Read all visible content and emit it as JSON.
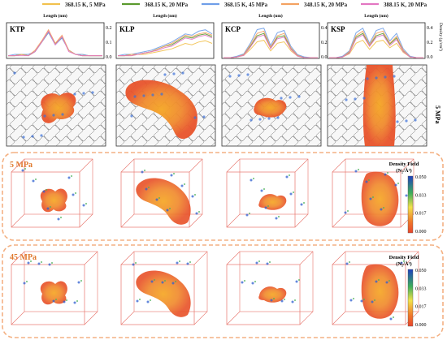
{
  "legend": [
    {
      "label": "368.15 K, 5 MPa",
      "color": "#f2c14e"
    },
    {
      "label": "368.15 K, 20 MPa",
      "color": "#5a9a2e"
    },
    {
      "label": "368.15 K, 45 MPa",
      "color": "#6f9ee8"
    },
    {
      "label": "348.15 K, 20 MPa",
      "color": "#f4a261"
    },
    {
      "label": "388.15 K, 20 MPa",
      "color": "#e377c2"
    }
  ],
  "panels": [
    "KTP",
    "KLP",
    "KCP",
    "KSP"
  ],
  "xlabel": "Length (nm)",
  "ylabel": "Density (g/cm³)",
  "yticks_a": [
    "0.2",
    "0.1",
    "0.0"
  ],
  "yticks_b": [
    "0.4",
    "0.2",
    "0.0"
  ],
  "row_label_2d": "5 MPa",
  "row_label_3d_a": "5 MPa",
  "row_label_3d_b": "45 MPa",
  "colorbar": {
    "title": "Density Field",
    "unit": "(N₂/Å³)",
    "ticks": [
      "0.050",
      "0.033",
      "0.017",
      "0.000"
    ],
    "colors": [
      "#1f3fbf",
      "#3fae5a",
      "#f2e14a",
      "#f07a2a",
      "#e8452c"
    ]
  },
  "chart_data": {
    "type": "line",
    "ylabel": "Density (g/cm³)",
    "xlabel": "Length (nm)",
    "series_names": [
      "368.15 K, 5 MPa",
      "368.15 K, 20 MPa",
      "368.15 K, 45 MPa",
      "348.15 K, 20 MPa",
      "388.15 K, 20 MPa"
    ],
    "profiles": [
      {
        "panel": "KTP",
        "ylim": [
          0,
          0.25
        ],
        "series": [
          {
            "name": "368.15 K, 5 MPa",
            "values": [
              0.02,
              0.02,
              0.03,
              0.02,
              0.05,
              0.12,
              0.2,
              0.11,
              0.16,
              0.06,
              0.03,
              0.03,
              0.02,
              0.02,
              0.02
            ]
          },
          {
            "name": "368.15 K, 20 MPa",
            "values": [
              0.02,
              0.02,
              0.03,
              0.02,
              0.05,
              0.12,
              0.19,
              0.11,
              0.15,
              0.06,
              0.03,
              0.02,
              0.02,
              0.02,
              0.02
            ]
          },
          {
            "name": "368.15 K, 45 MPa",
            "values": [
              0.02,
              0.03,
              0.03,
              0.03,
              0.05,
              0.12,
              0.19,
              0.1,
              0.15,
              0.06,
              0.03,
              0.03,
              0.02,
              0.02,
              0.02
            ]
          },
          {
            "name": "348.15 K, 20 MPa",
            "values": [
              0.02,
              0.02,
              0.03,
              0.02,
              0.06,
              0.13,
              0.21,
              0.11,
              0.17,
              0.06,
              0.03,
              0.02,
              0.02,
              0.02,
              0.02
            ]
          },
          {
            "name": "388.15 K, 20 MPa",
            "values": [
              0.02,
              0.02,
              0.02,
              0.02,
              0.05,
              0.12,
              0.2,
              0.1,
              0.16,
              0.05,
              0.03,
              0.02,
              0.02,
              0.02,
              0.02
            ]
          }
        ]
      },
      {
        "panel": "KLP",
        "ylim": [
          0,
          0.25
        ],
        "series": [
          {
            "name": "368.15 K, 5 MPa",
            "values": [
              0.02,
              0.02,
              0.02,
              0.03,
              0.03,
              0.04,
              0.05,
              0.06,
              0.07,
              0.09,
              0.11,
              0.1,
              0.12,
              0.13,
              0.11
            ]
          },
          {
            "name": "368.15 K, 20 MPa",
            "values": [
              0.02,
              0.02,
              0.03,
              0.03,
              0.04,
              0.05,
              0.07,
              0.09,
              0.1,
              0.13,
              0.16,
              0.15,
              0.17,
              0.18,
              0.16
            ]
          },
          {
            "name": "368.15 K, 45 MPa",
            "values": [
              0.02,
              0.03,
              0.03,
              0.04,
              0.05,
              0.06,
              0.08,
              0.1,
              0.12,
              0.15,
              0.18,
              0.17,
              0.2,
              0.21,
              0.18
            ]
          },
          {
            "name": "348.15 K, 20 MPa",
            "values": [
              0.02,
              0.02,
              0.03,
              0.03,
              0.04,
              0.05,
              0.07,
              0.09,
              0.11,
              0.14,
              0.17,
              0.16,
              0.18,
              0.19,
              0.17
            ]
          },
          {
            "name": "388.15 K, 20 MPa",
            "values": [
              0.02,
              0.02,
              0.02,
              0.03,
              0.04,
              0.05,
              0.06,
              0.08,
              0.09,
              0.12,
              0.15,
              0.14,
              0.16,
              0.17,
              0.15
            ]
          }
        ]
      },
      {
        "panel": "KCP",
        "ylim": [
          0,
          0.45
        ],
        "series": [
          {
            "name": "368.15 K, 5 MPa",
            "values": [
              0.01,
              0.01,
              0.02,
              0.04,
              0.12,
              0.22,
              0.24,
              0.1,
              0.2,
              0.22,
              0.1,
              0.03,
              0.01,
              0.01,
              0.01
            ]
          },
          {
            "name": "368.15 K, 20 MPa",
            "values": [
              0.01,
              0.01,
              0.02,
              0.05,
              0.16,
              0.3,
              0.33,
              0.14,
              0.28,
              0.3,
              0.13,
              0.04,
              0.01,
              0.01,
              0.01
            ]
          },
          {
            "name": "368.15 K, 45 MPa",
            "values": [
              0.01,
              0.01,
              0.03,
              0.06,
              0.2,
              0.38,
              0.4,
              0.17,
              0.34,
              0.37,
              0.16,
              0.05,
              0.02,
              0.01,
              0.01
            ]
          },
          {
            "name": "348.15 K, 20 MPa",
            "values": [
              0.01,
              0.01,
              0.02,
              0.05,
              0.18,
              0.33,
              0.36,
              0.15,
              0.3,
              0.33,
              0.14,
              0.04,
              0.01,
              0.01,
              0.01
            ]
          },
          {
            "name": "388.15 K, 20 MPa",
            "values": [
              0.01,
              0.01,
              0.02,
              0.04,
              0.15,
              0.28,
              0.31,
              0.13,
              0.26,
              0.28,
              0.12,
              0.03,
              0.01,
              0.01,
              0.01
            ]
          }
        ]
      },
      {
        "panel": "KSP",
        "ylim": [
          0,
          0.45
        ],
        "series": [
          {
            "name": "368.15 K, 5 MPa",
            "values": [
              0.01,
              0.01,
              0.02,
              0.06,
              0.2,
              0.24,
              0.12,
              0.22,
              0.24,
              0.14,
              0.2,
              0.08,
              0.02,
              0.01,
              0.01
            ]
          },
          {
            "name": "368.15 K, 20 MPa",
            "values": [
              0.01,
              0.01,
              0.02,
              0.08,
              0.28,
              0.33,
              0.17,
              0.3,
              0.33,
              0.19,
              0.27,
              0.1,
              0.02,
              0.01,
              0.01
            ]
          },
          {
            "name": "368.15 K, 45 MPa",
            "values": [
              0.01,
              0.01,
              0.03,
              0.1,
              0.34,
              0.4,
              0.2,
              0.37,
              0.4,
              0.23,
              0.33,
              0.13,
              0.03,
              0.01,
              0.01
            ]
          },
          {
            "name": "348.15 K, 20 MPa",
            "values": [
              0.01,
              0.01,
              0.02,
              0.09,
              0.3,
              0.36,
              0.18,
              0.33,
              0.36,
              0.2,
              0.29,
              0.11,
              0.02,
              0.01,
              0.01
            ]
          },
          {
            "name": "388.15 K, 20 MPa",
            "values": [
              0.01,
              0.01,
              0.02,
              0.07,
              0.26,
              0.31,
              0.16,
              0.28,
              0.31,
              0.17,
              0.25,
              0.09,
              0.02,
              0.01,
              0.01
            ]
          }
        ]
      }
    ]
  }
}
